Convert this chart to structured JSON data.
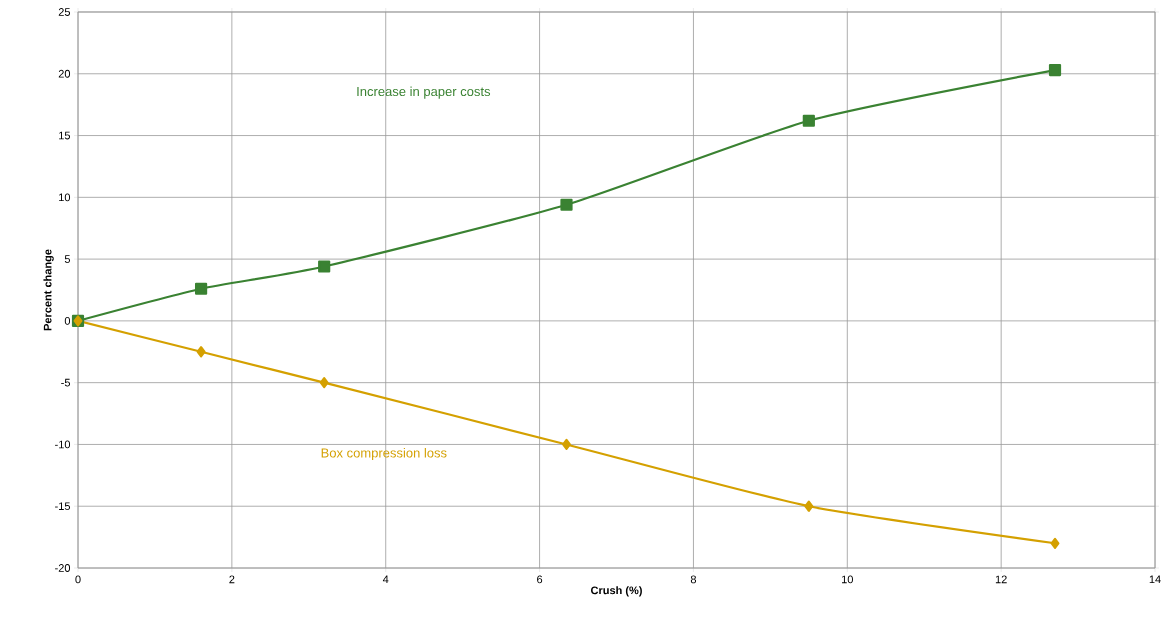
{
  "chart_data": {
    "type": "line",
    "xlabel": "Crush (%)",
    "ylabel": "Percent change",
    "xlim": [
      0,
      14
    ],
    "xticks": [
      0,
      2,
      4,
      6,
      8,
      10,
      12,
      14
    ],
    "ylim": [
      -20,
      25
    ],
    "yticks": [
      -20,
      -15,
      -10,
      -5,
      0,
      5,
      10,
      15,
      20,
      25
    ],
    "grid": true,
    "series": [
      {
        "name": "Increase in paper costs",
        "color": "#3a8232",
        "marker": "square",
        "x": [
          0,
          1.6,
          3.2,
          6.35,
          9.5,
          12.7
        ],
        "values": [
          0,
          2.6,
          4.4,
          9.4,
          16.2,
          20.3
        ]
      },
      {
        "name": "Box compression loss",
        "color": "#d4a000",
        "marker": "diamond",
        "x": [
          0,
          1.6,
          3.2,
          6.35,
          9.5,
          12.7
        ],
        "values": [
          0,
          -2.5,
          -5,
          -10,
          -15,
          -18
        ]
      }
    ]
  }
}
